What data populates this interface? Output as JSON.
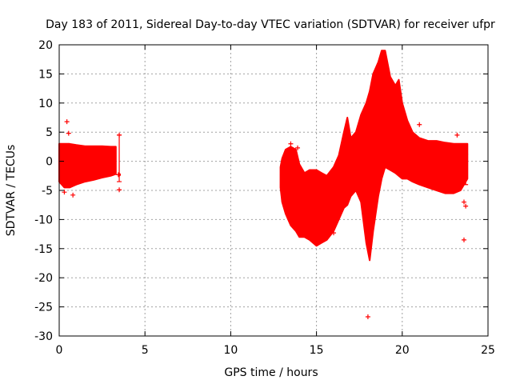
{
  "chart_data": {
    "type": "scatter",
    "title": "Day 183 of 2011, Sidereal Day-to-day VTEC variation (SDTVAR) for receiver ufpr",
    "xlabel": "GPS time / hours",
    "ylabel": "SDTVAR / TECUs",
    "xlim": [
      0,
      25
    ],
    "ylim": [
      -30,
      20
    ],
    "xticks": [
      0,
      5,
      10,
      15,
      20,
      25
    ],
    "yticks": [
      -30,
      -25,
      -20,
      -15,
      -10,
      -5,
      0,
      5,
      10,
      15,
      20
    ],
    "grid": true,
    "legend": "none",
    "series_color": "#ff0000",
    "band": [
      [
        0.0,
        -3.5,
        3.0
      ],
      [
        0.3,
        -4.5,
        3.0
      ],
      [
        0.6,
        -4.5,
        3.0
      ],
      [
        1.0,
        -4.0,
        2.8
      ],
      [
        1.5,
        -3.5,
        2.6
      ],
      [
        2.0,
        -3.2,
        2.6
      ],
      [
        2.5,
        -2.8,
        2.6
      ],
      [
        3.0,
        -2.5,
        2.5
      ],
      [
        3.3,
        -2.2,
        2.5
      ],
      null,
      [
        12.9,
        -4.5,
        -1.0
      ],
      [
        13.0,
        -7.0,
        0.5
      ],
      [
        13.2,
        -9.0,
        2.0
      ],
      [
        13.5,
        -11.0,
        2.5
      ],
      [
        13.8,
        -12.0,
        2.0
      ],
      [
        14.0,
        -13.0,
        -0.5
      ],
      [
        14.3,
        -13.0,
        -2.0
      ],
      [
        14.6,
        -13.5,
        -1.5
      ],
      [
        15.0,
        -14.5,
        -1.5
      ],
      [
        15.3,
        -14.0,
        -2.0
      ],
      [
        15.6,
        -13.5,
        -2.5
      ],
      [
        16.0,
        -12.0,
        -1.0
      ],
      [
        16.3,
        -10.0,
        1.0
      ],
      [
        16.6,
        -8.0,
        5.0
      ],
      [
        16.8,
        -7.5,
        7.5
      ],
      [
        17.0,
        -6.0,
        4.0
      ],
      [
        17.3,
        -5.0,
        5.0
      ],
      [
        17.6,
        -7.0,
        8.0
      ],
      [
        17.9,
        -14.0,
        10.0
      ],
      [
        18.1,
        -17.0,
        12.0
      ],
      [
        18.3,
        -12.0,
        15.0
      ],
      [
        18.6,
        -6.0,
        17.0
      ],
      [
        18.8,
        -3.0,
        19.0
      ],
      [
        19.0,
        -1.0,
        19.0
      ],
      [
        19.3,
        -1.5,
        14.5
      ],
      [
        19.6,
        -2.0,
        13.0
      ],
      [
        19.8,
        -2.5,
        14.0
      ],
      [
        20.0,
        -3.0,
        10.0
      ],
      [
        20.3,
        -3.0,
        7.0
      ],
      [
        20.6,
        -3.5,
        5.0
      ],
      [
        21.0,
        -4.0,
        4.0
      ],
      [
        21.5,
        -4.5,
        3.5
      ],
      [
        22.0,
        -5.0,
        3.5
      ],
      [
        22.5,
        -5.5,
        3.2
      ],
      [
        23.0,
        -5.5,
        3.0
      ],
      [
        23.4,
        -5.0,
        3.0
      ],
      [
        23.6,
        -4.0,
        3.0
      ],
      [
        23.8,
        -3.0,
        3.0
      ]
    ],
    "outliers": [
      [
        0.45,
        6.8
      ],
      [
        0.55,
        4.8
      ],
      [
        0.8,
        -5.8
      ],
      [
        0.3,
        -5.3
      ],
      [
        3.5,
        -4.9
      ],
      [
        3.5,
        4.5
      ],
      [
        3.45,
        -2.3
      ],
      [
        13.5,
        3.0
      ],
      [
        13.9,
        2.3
      ],
      [
        16.0,
        -12.3
      ],
      [
        18.0,
        -26.7
      ],
      [
        21.0,
        6.3
      ],
      [
        23.2,
        4.5
      ],
      [
        23.6,
        -13.5
      ],
      [
        23.6,
        -7.0
      ],
      [
        23.7,
        -7.7
      ]
    ],
    "errorbars": [
      [
        3.5,
        -2.3,
        -3.5,
        4.5
      ],
      [
        23.7,
        -2.0,
        -4.0,
        1.2
      ]
    ]
  }
}
